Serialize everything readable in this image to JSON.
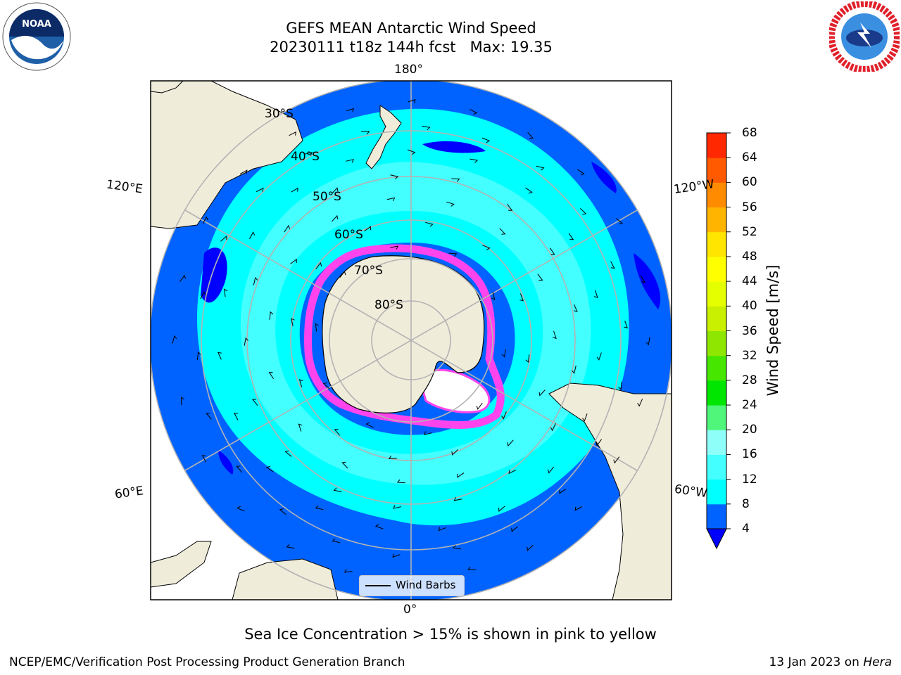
{
  "header": {
    "title_line1": "GEFS MEAN Antarctic Wind Speed",
    "title_line2": "20230111 t18z 144h fcst   Max: 19.35"
  },
  "graticule_labels": {
    "lon_180": "180°",
    "lon_0": "0°",
    "lon_120E": "120°E",
    "lon_120W": "120°W",
    "lon_60E": "60°E",
    "lon_60W": "60°W",
    "lat_30": "30°S",
    "lat_40": "40°S",
    "lat_50": "50°S",
    "lat_60": "60°S",
    "lat_70": "70°S",
    "lat_80": "80°S"
  },
  "legend": {
    "wind_barbs": "Wind Barbs"
  },
  "colorbar": {
    "title": "Wind Speed [m/s]",
    "ticks": [
      "4",
      "8",
      "12",
      "16",
      "20",
      "24",
      "28",
      "32",
      "36",
      "40",
      "44",
      "48",
      "52",
      "56",
      "60",
      "64",
      "68"
    ],
    "colors": [
      "#0063ff",
      "#00ffff",
      "#43ffff",
      "#8ffffa",
      "#4ff67a",
      "#00e600",
      "#46e600",
      "#8fe600",
      "#c8f000",
      "#e6ff00",
      "#ffff00",
      "#ffe500",
      "#ffb500",
      "#ff8c00",
      "#ff5a00",
      "#ff2800"
    ],
    "under_color": "#0000ff"
  },
  "colors": {
    "land": "#efecda",
    "ocean_4_8": "#0063ff",
    "ocean_8_12": "#00ffff",
    "ocean_12_16": "#43ffff",
    "ocean_under_4": "#0000ff",
    "sea_ice": "#ff44ee"
  },
  "caption": "Sea Ice Concentration > 15% is shown in pink to yellow",
  "footer": {
    "left": "NCEP/EMC/Verification Post Processing Product Generation Branch",
    "date": "13 Jan 2023 on ",
    "machine": "Hera"
  },
  "logos": {
    "left_icon": "noaa-logo-icon",
    "right_icon": "nws-logo-icon"
  }
}
